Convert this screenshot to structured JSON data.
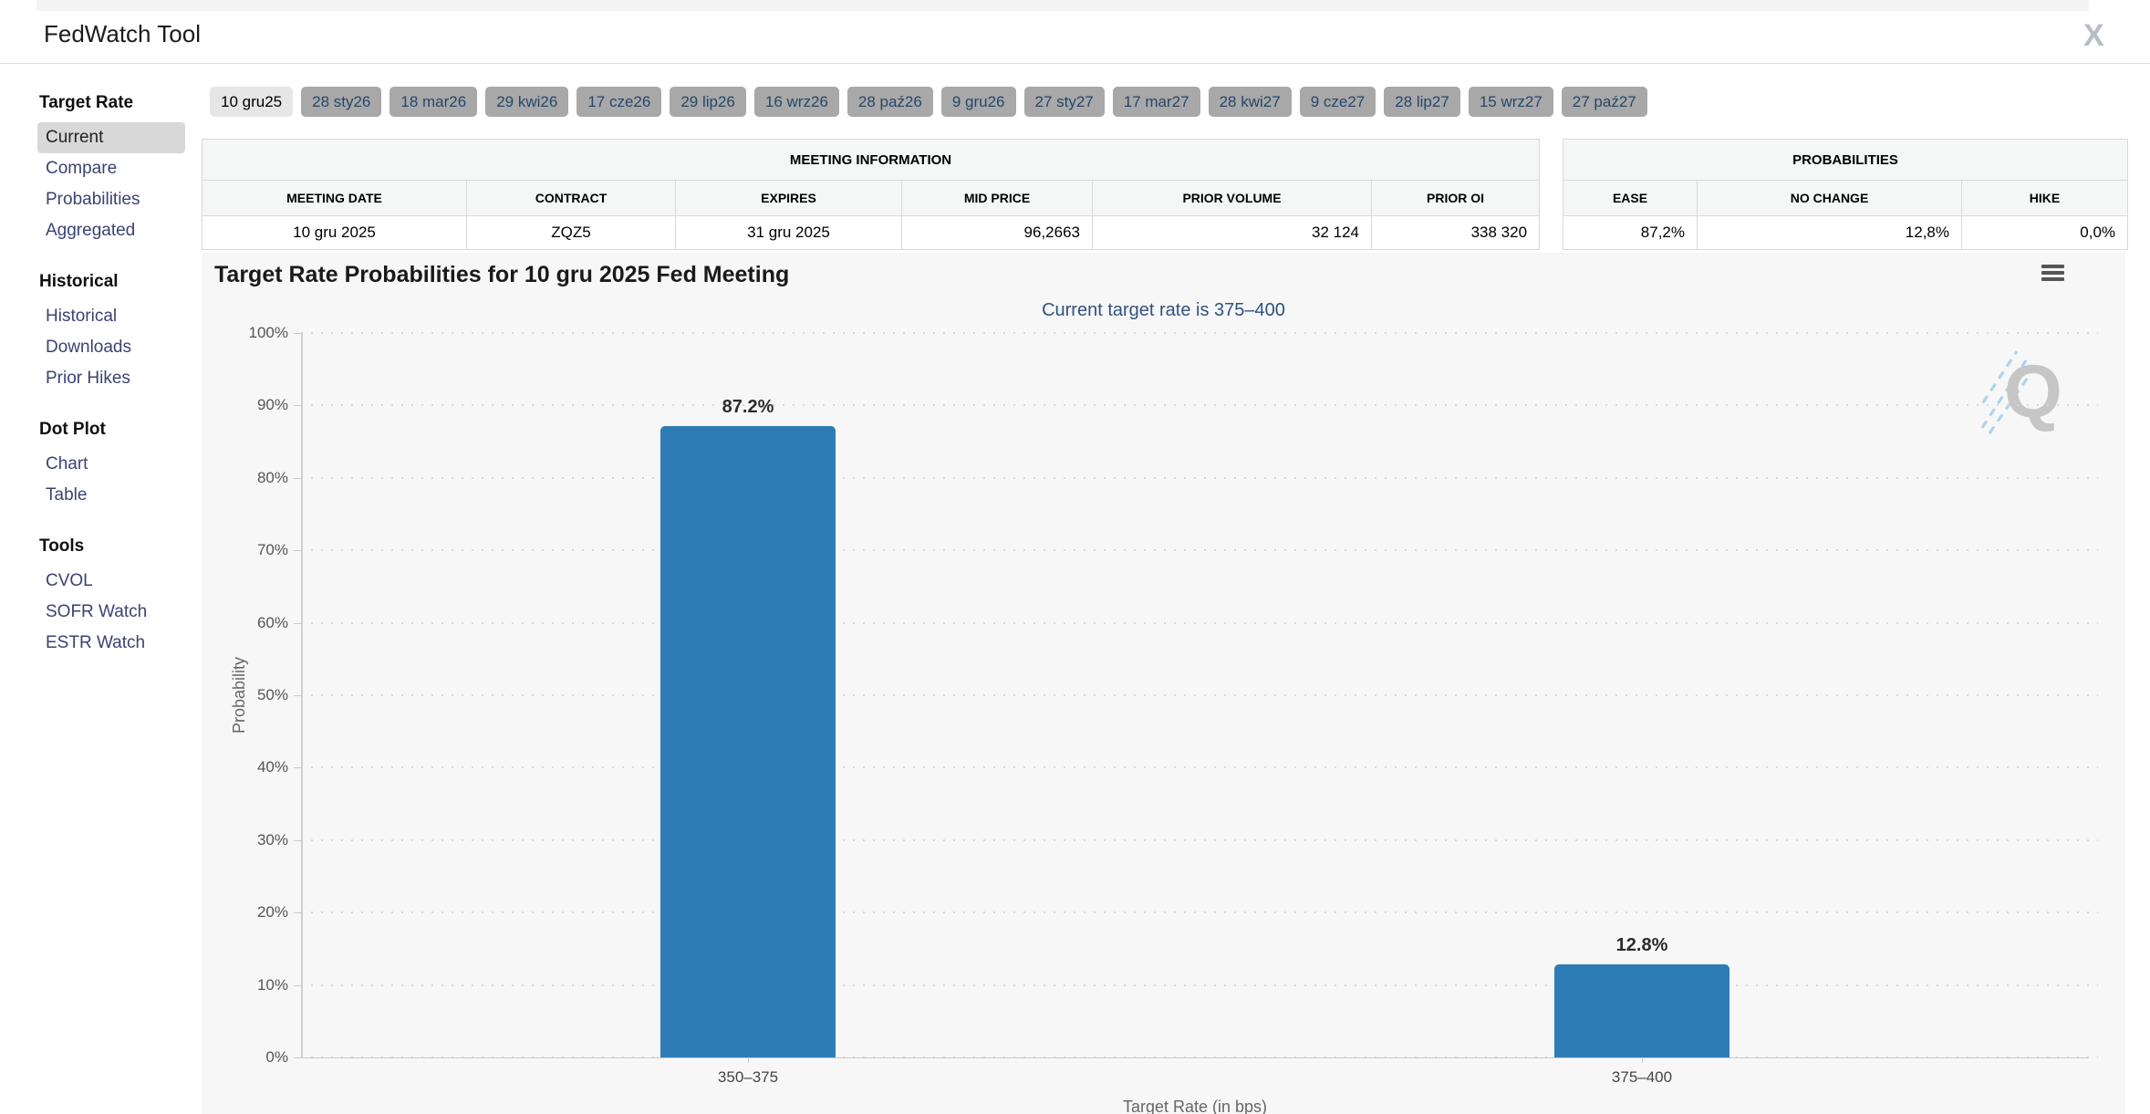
{
  "header": {
    "title": "FedWatch Tool",
    "share_icon": "x-logo"
  },
  "tabs": {
    "selected_index": 0,
    "items": [
      {
        "label": "10 gru25"
      },
      {
        "label": "28 sty26"
      },
      {
        "label": "18 mar26"
      },
      {
        "label": "29 kwi26"
      },
      {
        "label": "17 cze26"
      },
      {
        "label": "29 lip26"
      },
      {
        "label": "16 wrz26"
      },
      {
        "label": "28 paź26"
      },
      {
        "label": "9 gru26"
      },
      {
        "label": "27 sty27"
      },
      {
        "label": "17 mar27"
      },
      {
        "label": "28 kwi27"
      },
      {
        "label": "9 cze27"
      },
      {
        "label": "28 lip27"
      },
      {
        "label": "15 wrz27"
      },
      {
        "label": "27 paź27"
      }
    ]
  },
  "sidebar": {
    "sections": [
      {
        "heading": "Target Rate",
        "items": [
          {
            "label": "Current",
            "selected": true
          },
          {
            "label": "Compare"
          },
          {
            "label": "Probabilities"
          },
          {
            "label": "Aggregated"
          }
        ]
      },
      {
        "heading": "Historical",
        "items": [
          {
            "label": "Historical"
          },
          {
            "label": "Downloads"
          },
          {
            "label": "Prior Hikes"
          }
        ]
      },
      {
        "heading": "Dot Plot",
        "items": [
          {
            "label": "Chart"
          },
          {
            "label": "Table"
          }
        ]
      },
      {
        "heading": "Tools",
        "items": [
          {
            "label": "CVOL"
          },
          {
            "label": "SOFR Watch"
          },
          {
            "label": "ESTR Watch"
          }
        ]
      }
    ]
  },
  "meeting_info": {
    "caption": "MEETING INFORMATION",
    "columns": [
      "MEETING DATE",
      "CONTRACT",
      "EXPIRES",
      "MID PRICE",
      "PRIOR VOLUME",
      "PRIOR OI"
    ],
    "values": [
      "10 gru 2025",
      "ZQZ5",
      "31 gru 2025",
      "96,2663",
      "32 124",
      "338 320"
    ]
  },
  "probabilities": {
    "caption": "PROBABILITIES",
    "columns": [
      "EASE",
      "NO CHANGE",
      "HIKE"
    ],
    "values": [
      "87,2%",
      "12,8%",
      "0,0%"
    ]
  },
  "chart_data": {
    "type": "bar",
    "title": "Target Rate Probabilities for 10 gru 2025 Fed Meeting",
    "subtitle": "Current target rate is 375–400",
    "categories": [
      "350–375",
      "375–400"
    ],
    "values": [
      87.2,
      12.8
    ],
    "value_labels": [
      "87.2%",
      "12.8%"
    ],
    "xlabel": "Target Rate (in bps)",
    "ylabel": "Probability",
    "ylim": [
      0,
      100
    ],
    "yticks": [
      "0%",
      "10%",
      "20%",
      "30%",
      "40%",
      "50%",
      "60%",
      "70%",
      "80%",
      "90%",
      "100%"
    ],
    "bar_color": "#2d7cb5",
    "grid": "dotted-horizontal",
    "legend": "none",
    "watermark": "Q",
    "menu_icon": "hamburger-icon"
  }
}
